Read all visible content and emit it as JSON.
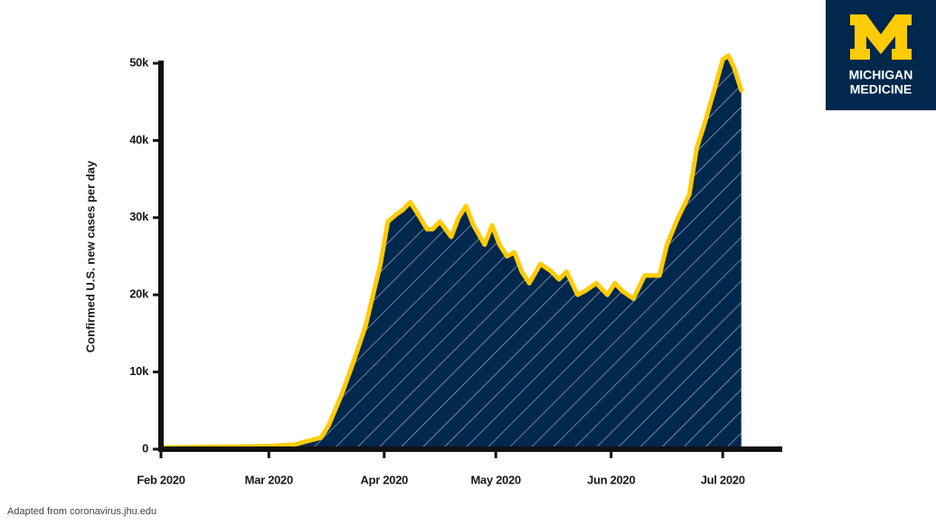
{
  "chart_data": {
    "type": "area",
    "y_label": "Confirmed U.S. new cases per day",
    "source": "Adapted from coronavirus.jhu.edu",
    "color": "#ffcb05",
    "fill_color": "#00274c",
    "hatch_color": "#9fb6d6",
    "x": [
      0,
      15,
      29,
      36,
      39,
      43,
      45,
      48.5,
      51.5,
      55,
      57,
      59,
      61,
      63.5,
      65,
      67,
      69,
      71.5,
      73,
      75,
      78,
      80,
      82,
      84,
      87,
      89,
      91,
      93,
      95,
      97,
      99,
      102,
      105,
      107,
      109,
      112,
      114,
      117,
      120,
      122,
      124,
      127,
      130,
      134,
      136,
      139,
      142,
      144,
      146,
      149,
      151,
      152.5,
      154,
      156
    ],
    "values": [
      200,
      300,
      400,
      600,
      1000,
      1500,
      3000,
      7000,
      11000,
      16000,
      20000,
      24000,
      29500,
      30500,
      31000,
      32000,
      30500,
      28500,
      28500,
      29500,
      27500,
      30000,
      31500,
      29000,
      26500,
      29000,
      26500,
      25000,
      25500,
      23000,
      21500,
      24000,
      23000,
      22000,
      23000,
      20000,
      20500,
      21500,
      20000,
      21500,
      20500,
      19500,
      22500,
      22500,
      26500,
      30000,
      33000,
      39000,
      42000,
      47000,
      50500,
      51000,
      49500,
      46500
    ],
    "xlim": [
      0,
      167
    ],
    "xticks": [
      {
        "value": 0,
        "label": "Feb 2020"
      },
      {
        "value": 29,
        "label": "Mar 2020"
      },
      {
        "value": 60,
        "label": "Apr 2020"
      },
      {
        "value": 90,
        "label": "May 2020"
      },
      {
        "value": 121,
        "label": "Jun 2020"
      },
      {
        "value": 151,
        "label": "Jul 2020"
      }
    ],
    "ylim": [
      0,
      50000
    ],
    "yticks": [
      0,
      {
        "value": 10000,
        "label": "10k"
      },
      {
        "value": 20000,
        "label": "20k"
      },
      {
        "value": 30000,
        "label": "30k"
      },
      {
        "value": 40000,
        "label": "40k"
      },
      {
        "value": 50000,
        "label": "50k"
      }
    ]
  },
  "logo": {
    "line1": "MICHIGAN",
    "line2": "MEDICINE"
  }
}
